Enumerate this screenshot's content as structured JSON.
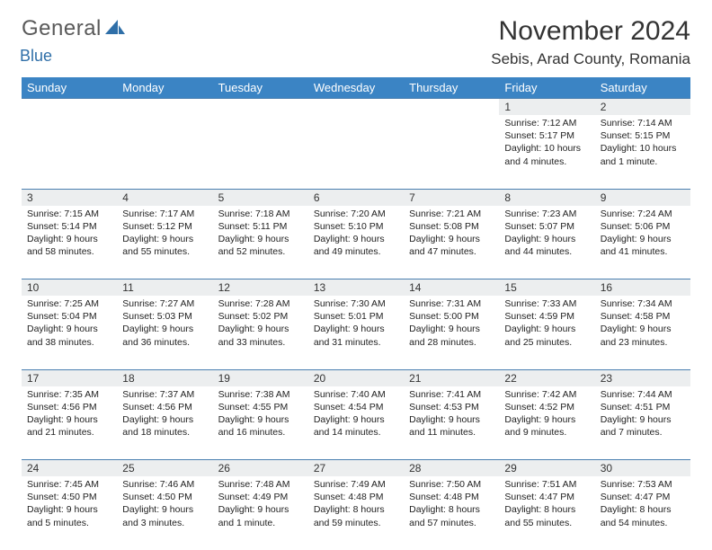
{
  "logo": {
    "text1": "General",
    "text2": "Blue"
  },
  "header": {
    "month_title": "November 2024",
    "location": "Sebis, Arad County, Romania"
  },
  "colors": {
    "header_bg": "#3b84c4",
    "header_text": "#ffffff",
    "daynum_bg": "#eceeef",
    "row_border": "#4a7fb0",
    "logo_gray": "#5a5a5a",
    "logo_blue": "#2f6fa8"
  },
  "daynames": [
    "Sunday",
    "Monday",
    "Tuesday",
    "Wednesday",
    "Thursday",
    "Friday",
    "Saturday"
  ],
  "weeks": [
    {
      "nums": [
        "",
        "",
        "",
        "",
        "",
        "1",
        "2"
      ],
      "cells": [
        [],
        [],
        [],
        [],
        [],
        [
          "Sunrise: 7:12 AM",
          "Sunset: 5:17 PM",
          "Daylight: 10 hours and 4 minutes."
        ],
        [
          "Sunrise: 7:14 AM",
          "Sunset: 5:15 PM",
          "Daylight: 10 hours and 1 minute."
        ]
      ]
    },
    {
      "nums": [
        "3",
        "4",
        "5",
        "6",
        "7",
        "8",
        "9"
      ],
      "cells": [
        [
          "Sunrise: 7:15 AM",
          "Sunset: 5:14 PM",
          "Daylight: 9 hours and 58 minutes."
        ],
        [
          "Sunrise: 7:17 AM",
          "Sunset: 5:12 PM",
          "Daylight: 9 hours and 55 minutes."
        ],
        [
          "Sunrise: 7:18 AM",
          "Sunset: 5:11 PM",
          "Daylight: 9 hours and 52 minutes."
        ],
        [
          "Sunrise: 7:20 AM",
          "Sunset: 5:10 PM",
          "Daylight: 9 hours and 49 minutes."
        ],
        [
          "Sunrise: 7:21 AM",
          "Sunset: 5:08 PM",
          "Daylight: 9 hours and 47 minutes."
        ],
        [
          "Sunrise: 7:23 AM",
          "Sunset: 5:07 PM",
          "Daylight: 9 hours and 44 minutes."
        ],
        [
          "Sunrise: 7:24 AM",
          "Sunset: 5:06 PM",
          "Daylight: 9 hours and 41 minutes."
        ]
      ]
    },
    {
      "nums": [
        "10",
        "11",
        "12",
        "13",
        "14",
        "15",
        "16"
      ],
      "cells": [
        [
          "Sunrise: 7:25 AM",
          "Sunset: 5:04 PM",
          "Daylight: 9 hours and 38 minutes."
        ],
        [
          "Sunrise: 7:27 AM",
          "Sunset: 5:03 PM",
          "Daylight: 9 hours and 36 minutes."
        ],
        [
          "Sunrise: 7:28 AM",
          "Sunset: 5:02 PM",
          "Daylight: 9 hours and 33 minutes."
        ],
        [
          "Sunrise: 7:30 AM",
          "Sunset: 5:01 PM",
          "Daylight: 9 hours and 31 minutes."
        ],
        [
          "Sunrise: 7:31 AM",
          "Sunset: 5:00 PM",
          "Daylight: 9 hours and 28 minutes."
        ],
        [
          "Sunrise: 7:33 AM",
          "Sunset: 4:59 PM",
          "Daylight: 9 hours and 25 minutes."
        ],
        [
          "Sunrise: 7:34 AM",
          "Sunset: 4:58 PM",
          "Daylight: 9 hours and 23 minutes."
        ]
      ]
    },
    {
      "nums": [
        "17",
        "18",
        "19",
        "20",
        "21",
        "22",
        "23"
      ],
      "cells": [
        [
          "Sunrise: 7:35 AM",
          "Sunset: 4:56 PM",
          "Daylight: 9 hours and 21 minutes."
        ],
        [
          "Sunrise: 7:37 AM",
          "Sunset: 4:56 PM",
          "Daylight: 9 hours and 18 minutes."
        ],
        [
          "Sunrise: 7:38 AM",
          "Sunset: 4:55 PM",
          "Daylight: 9 hours and 16 minutes."
        ],
        [
          "Sunrise: 7:40 AM",
          "Sunset: 4:54 PM",
          "Daylight: 9 hours and 14 minutes."
        ],
        [
          "Sunrise: 7:41 AM",
          "Sunset: 4:53 PM",
          "Daylight: 9 hours and 11 minutes."
        ],
        [
          "Sunrise: 7:42 AM",
          "Sunset: 4:52 PM",
          "Daylight: 9 hours and 9 minutes."
        ],
        [
          "Sunrise: 7:44 AM",
          "Sunset: 4:51 PM",
          "Daylight: 9 hours and 7 minutes."
        ]
      ]
    },
    {
      "nums": [
        "24",
        "25",
        "26",
        "27",
        "28",
        "29",
        "30"
      ],
      "cells": [
        [
          "Sunrise: 7:45 AM",
          "Sunset: 4:50 PM",
          "Daylight: 9 hours and 5 minutes."
        ],
        [
          "Sunrise: 7:46 AM",
          "Sunset: 4:50 PM",
          "Daylight: 9 hours and 3 minutes."
        ],
        [
          "Sunrise: 7:48 AM",
          "Sunset: 4:49 PM",
          "Daylight: 9 hours and 1 minute."
        ],
        [
          "Sunrise: 7:49 AM",
          "Sunset: 4:48 PM",
          "Daylight: 8 hours and 59 minutes."
        ],
        [
          "Sunrise: 7:50 AM",
          "Sunset: 4:48 PM",
          "Daylight: 8 hours and 57 minutes."
        ],
        [
          "Sunrise: 7:51 AM",
          "Sunset: 4:47 PM",
          "Daylight: 8 hours and 55 minutes."
        ],
        [
          "Sunrise: 7:53 AM",
          "Sunset: 4:47 PM",
          "Daylight: 8 hours and 54 minutes."
        ]
      ]
    }
  ]
}
